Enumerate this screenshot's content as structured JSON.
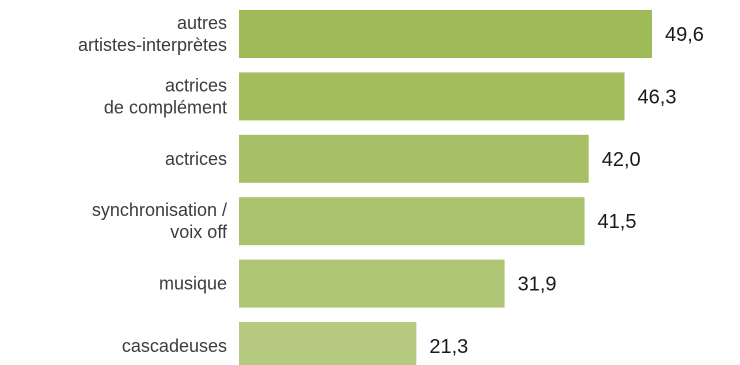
{
  "chart_data": {
    "type": "bar",
    "orientation": "horizontal",
    "categories": [
      [
        "autres",
        "artistes-interprètes"
      ],
      [
        "actrices",
        "de complément"
      ],
      [
        "actrices"
      ],
      [
        "synchronisation /",
        "voix off"
      ],
      [
        "musique"
      ],
      [
        "cascadeuses"
      ]
    ],
    "values": [
      49.6,
      46.3,
      42.0,
      41.5,
      31.9,
      21.3
    ],
    "value_labels": [
      "49,6",
      "46,3",
      "42,0",
      "41,5",
      "31,9",
      "21,3"
    ],
    "bar_colors": [
      "#9fba58",
      "#a3bd5e",
      "#a7c066",
      "#aac36c",
      "#afc677",
      "#b5ca80"
    ],
    "xlim": [
      0,
      49.6
    ],
    "grid": false,
    "legend": "none"
  }
}
